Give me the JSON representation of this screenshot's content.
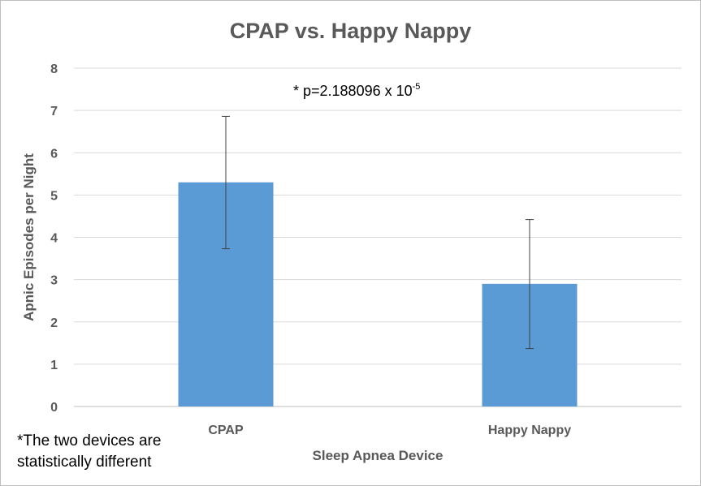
{
  "chart_data": {
    "type": "bar",
    "title": "CPAP vs. Happy Nappy",
    "xlabel": "Sleep Apnea Device",
    "ylabel": "Apnic Episodes per Night",
    "categories": [
      "CPAP",
      "Happy Nappy"
    ],
    "values": [
      5.3,
      2.9
    ],
    "error_low": [
      3.73,
      1.37
    ],
    "error_high": [
      6.86,
      4.42
    ],
    "ylim": [
      0,
      8
    ],
    "yticks": [
      "0",
      "1",
      "2",
      "3",
      "4",
      "5",
      "6",
      "7",
      "8"
    ],
    "grid": true,
    "bar_color": "#5b9bd5",
    "annotation": {
      "prefix": "*  p=2.188096 x 10",
      "exponent": "-5"
    },
    "footnote": {
      "line1": "*The two devices are",
      "line2": "statistically different"
    }
  }
}
